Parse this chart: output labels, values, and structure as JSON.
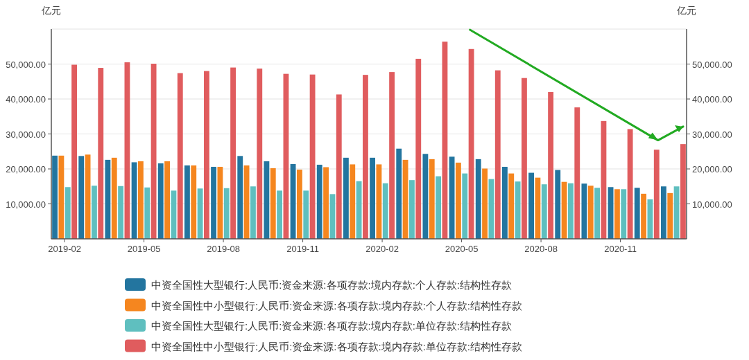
{
  "chart_data": {
    "type": "bar",
    "ylabel": "亿元",
    "y2label": "亿元",
    "categories": [
      "2019-02",
      null,
      null,
      "2019-05",
      null,
      null,
      "2019-08",
      null,
      null,
      "2019-11",
      null,
      null,
      "2020-02",
      null,
      null,
      "2020-05",
      null,
      null,
      "2020-08",
      null,
      null,
      "2020-11",
      null,
      null
    ],
    "series": [
      {
        "name": "中资全国性大型银行:人民币:资金来源:各项存款:境内存款:个人存款:结构性存款",
        "color": "#23759f",
        "values": [
          23800,
          23700,
          22600,
          21900,
          21600,
          21000,
          20600,
          23700,
          22200,
          21400,
          21200,
          23200,
          23200,
          25800,
          24300,
          23500,
          22800,
          20600,
          18900,
          19700,
          15800,
          14800,
          14600,
          15000
        ]
      },
      {
        "name": "中资全国性中小型银行:人民币:资金来源:各项存款:境内存款:个人存款:结构性存款",
        "color": "#f5861f",
        "values": [
          23800,
          24100,
          23200,
          22200,
          22200,
          21000,
          20600,
          21000,
          20200,
          19800,
          20500,
          21300,
          21300,
          22600,
          22800,
          21800,
          20100,
          18700,
          17500,
          16300,
          15200,
          14200,
          12900,
          13100
        ]
      },
      {
        "name": "中资全国性大型银行:人民币:资金来源:各项存款:境内存款:单位存款:结构性存款",
        "color": "#5fbfbf",
        "values": [
          14800,
          15200,
          15100,
          14700,
          13800,
          14400,
          14500,
          15000,
          13800,
          13800,
          12800,
          16500,
          15900,
          16800,
          17900,
          18700,
          17100,
          16400,
          15600,
          15900,
          14600,
          14200,
          11300,
          15000
        ]
      },
      {
        "name": "中资全国性中小型银行:人民币:资金来源:各项存款:境内存款:单位存款:结构性存款",
        "color": "#e05c5e",
        "values": [
          49800,
          48900,
          50500,
          50100,
          47400,
          48000,
          49000,
          48700,
          47200,
          47000,
          41300,
          46900,
          47700,
          51500,
          56400,
          54300,
          48200,
          46000,
          42000,
          37600,
          33700,
          31400,
          25500,
          27100
        ]
      }
    ],
    "ylim": [
      0,
      60000
    ],
    "yticks": [
      {
        "value": 10000,
        "label": "10,000.00"
      },
      {
        "value": 20000,
        "label": "20,000.00"
      },
      {
        "value": 30000,
        "label": "30,000.00"
      },
      {
        "value": 40000,
        "label": "40,000.00"
      },
      {
        "value": 50000,
        "label": "50,000.00"
      },
      {
        "value": 60000,
        "label": null
      }
    ],
    "y2lim": [
      0,
      60000
    ],
    "y2ticks": [
      {
        "value": 10000,
        "label": "10,000.00"
      },
      {
        "value": 20000,
        "label": "20,000.00"
      },
      {
        "value": 30000,
        "label": "30,000.00"
      },
      {
        "value": 40000,
        "label": "40,000.00"
      },
      {
        "value": 50000,
        "label": "50,000.00"
      }
    ],
    "grid": "y",
    "legend": "bottom"
  }
}
